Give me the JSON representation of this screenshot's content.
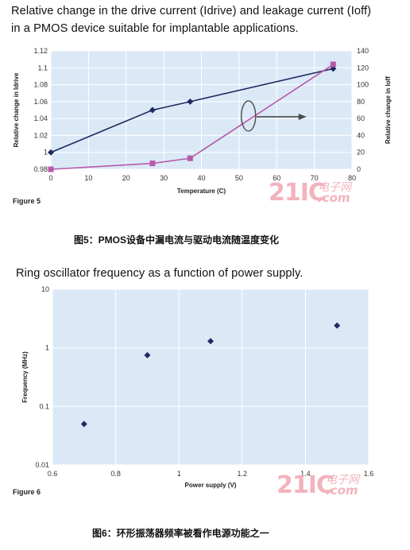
{
  "figure5": {
    "title_line1": "Relative change in the drive current (Idrive) and leakage current (Ioff)",
    "title_line2": "in a PMOS device suitable for implantable applications.",
    "figure_label": "Figure 5",
    "caption": "图5：PMOS设备中漏电流与驱动电流随温度变化"
  },
  "figure6": {
    "title": "Ring oscillator frequency as a function of power supply.",
    "figure_label": "Figure 6",
    "caption": "图6：环形振荡器频率被看作电源功能之一"
  },
  "watermark": {
    "logo": "21IC",
    "chinese": "电子网",
    "dotcom": ".com"
  },
  "colors": {
    "plot_bg": "#dbe9f7",
    "grid": "#ffffff",
    "series_dark": "#1f2a5e",
    "series_pink": "#b55aa8",
    "annotation": "#4a4a4a"
  },
  "chart_data": [
    {
      "type": "line",
      "title": "",
      "xlabel": "Temperature (C)",
      "ylabel": "Relative change in Idrive",
      "y2label": "Relative change in Ioff",
      "xlim": [
        0,
        80
      ],
      "ylim": [
        0.98,
        1.12
      ],
      "y2lim": [
        0,
        140
      ],
      "xticks": [
        "0",
        "10",
        "20",
        "30",
        "40",
        "50",
        "60",
        "70",
        "80"
      ],
      "yticks": [
        "0.98",
        "1",
        "1.02",
        "1.04",
        "1.06",
        "1.08",
        "1.1",
        "1.12"
      ],
      "y2ticks": [
        "0",
        "20",
        "40",
        "60",
        "80",
        "100",
        "120",
        "140"
      ],
      "grid": true,
      "series": [
        {
          "name": "",
          "axis": "left",
          "color": "#1f2a5e",
          "marker": "diamond",
          "x": [
            0,
            27,
            37,
            75
          ],
          "y": [
            1.0,
            1.05,
            1.06,
            1.099
          ]
        },
        {
          "name": "",
          "axis": "right",
          "color": "#b55aa8",
          "marker": "square",
          "x": [
            0,
            27,
            37,
            75
          ],
          "y": [
            0,
            7,
            13,
            124
          ]
        }
      ],
      "annotation": {
        "type": "ellipse-with-arrow",
        "pointing": "right",
        "meaning": "pink series uses right axis"
      }
    },
    {
      "type": "scatter",
      "title": "",
      "xlabel": "Power supply (V)",
      "ylabel": "Frequency (MHz)",
      "xlim": [
        0.6,
        1.6
      ],
      "ylim": [
        0.01,
        10
      ],
      "yscale": "log",
      "xticks": [
        "0.6",
        "0.8",
        "1",
        "1.2",
        "1.4",
        "1.6"
      ],
      "yticks": [
        "0.01",
        "0.1",
        "1",
        "10"
      ],
      "grid": true,
      "series": [
        {
          "name": "",
          "color": "#1f2a5e",
          "marker": "diamond",
          "x": [
            0.7,
            0.9,
            1.1,
            1.5
          ],
          "y": [
            0.05,
            0.75,
            1.3,
            2.4
          ]
        }
      ]
    }
  ]
}
